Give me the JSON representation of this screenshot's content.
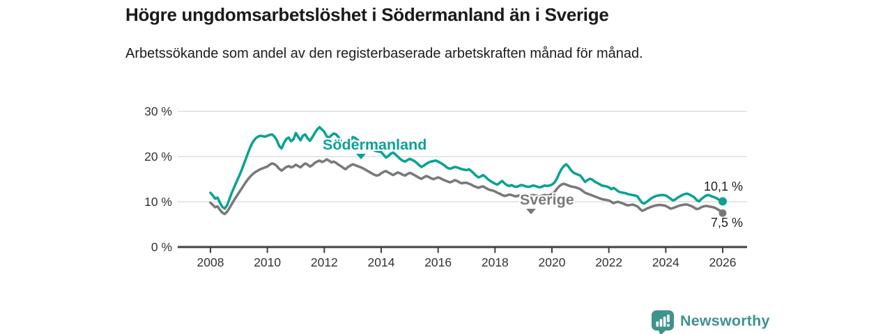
{
  "title": "Högre ungdomsarbetslöshet i Södermanland än i Sverige",
  "subtitle": "Arbetssökande som andel av den registerbaserade arbetskraften månad för månad.",
  "branding": {
    "logo_text": "Newsworthy",
    "logo_color": "#3e938d"
  },
  "axis_colors": {
    "grid": "#d8d8d8",
    "axis": "#3f3f3f",
    "tick_text": "#333333"
  },
  "chart_data": {
    "type": "line",
    "frequency": "monthly",
    "x_start": "2008-01",
    "x_end": "2026-01",
    "x_ticks": [
      2008,
      2010,
      2012,
      2014,
      2016,
      2018,
      2020,
      2022,
      2024,
      2026
    ],
    "ylim": [
      0,
      30
    ],
    "y_gridlines": [
      10,
      20,
      30
    ],
    "y_ticks": [
      [
        0,
        "0 %"
      ],
      [
        10,
        "10 %"
      ],
      [
        20,
        "20 %"
      ],
      [
        30,
        "30 %"
      ]
    ],
    "grid": true,
    "legend_position": "inline-labels",
    "series": [
      {
        "name": "Södermanland",
        "color": "#0ba294",
        "end_label": "10,1 %",
        "end_value": 10.1,
        "values": [
          12.0,
          11.4,
          10.7,
          10.9,
          9.8,
          8.9,
          8.5,
          9.2,
          10.6,
          12.0,
          13.2,
          14.4,
          15.6,
          16.8,
          18.2,
          19.6,
          21.0,
          22.3,
          23.3,
          24.0,
          24.4,
          24.6,
          24.5,
          24.4,
          24.6,
          24.8,
          24.9,
          24.4,
          23.6,
          22.3,
          21.8,
          23.0,
          23.9,
          24.2,
          23.4,
          23.8,
          25.2,
          24.4,
          23.6,
          24.6,
          24.9,
          24.0,
          23.5,
          24.3,
          25.2,
          26.0,
          26.5,
          26.0,
          25.5,
          24.5,
          24.2,
          24.7,
          25.1,
          24.9,
          24.3,
          23.5,
          22.6,
          21.8,
          22.9,
          23.4,
          24.3,
          24.1,
          23.7,
          23.3,
          22.9,
          22.5,
          22.1,
          21.9,
          21.7,
          21.4,
          21.2,
          21.1,
          21.0,
          20.4,
          19.8,
          20.1,
          20.6,
          20.9,
          20.5,
          20.0,
          19.5,
          19.1,
          18.9,
          19.2,
          19.5,
          19.3,
          19.0,
          18.6,
          18.1,
          17.7,
          18.0,
          18.4,
          18.7,
          18.9,
          19.0,
          19.1,
          18.9,
          18.6,
          18.3,
          17.9,
          17.5,
          17.3,
          17.5,
          17.7,
          17.6,
          17.4,
          17.2,
          17.1,
          17.0,
          17.2,
          16.8,
          16.3,
          15.8,
          15.4,
          15.6,
          15.9,
          15.5,
          15.0,
          14.6,
          14.3,
          14.0,
          13.8,
          14.2,
          14.6,
          14.1,
          13.7,
          13.5,
          13.7,
          13.4,
          13.3,
          13.5,
          13.7,
          13.6,
          13.4,
          13.3,
          13.4,
          13.6,
          13.5,
          13.3,
          13.2,
          13.4,
          13.6,
          13.5,
          13.6,
          13.8,
          14.2,
          15.0,
          16.2,
          17.2,
          17.9,
          18.3,
          17.8,
          17.0,
          16.5,
          16.2,
          16.0,
          15.8,
          15.1,
          14.4,
          14.8,
          15.1,
          14.9,
          14.5,
          14.2,
          13.9,
          13.6,
          13.5,
          13.4,
          13.2,
          12.8,
          13.1,
          12.7,
          12.3,
          12.1,
          12.0,
          11.9,
          11.7,
          11.6,
          11.5,
          11.4,
          11.2,
          10.5,
          9.8,
          9.6,
          10.0,
          10.4,
          10.8,
          11.1,
          11.3,
          11.4,
          11.5,
          11.5,
          11.4,
          11.1,
          10.7,
          10.3,
          10.5,
          10.9,
          11.2,
          11.5,
          11.7,
          11.8,
          11.6,
          11.3,
          11.0,
          10.4,
          10.1,
          10.6,
          11.0,
          11.4,
          11.5,
          11.3,
          11.1,
          10.9,
          10.6,
          10.3,
          10.1
        ]
      },
      {
        "name": "Sverige",
        "color": "#7b787c",
        "end_label": "7,5 %",
        "end_value": 7.5,
        "values": [
          9.8,
          9.3,
          8.8,
          9.0,
          8.2,
          7.6,
          7.3,
          7.8,
          8.6,
          9.5,
          10.4,
          11.2,
          12.0,
          12.8,
          13.6,
          14.4,
          15.1,
          15.7,
          16.2,
          16.6,
          16.9,
          17.2,
          17.4,
          17.6,
          17.8,
          18.2,
          18.5,
          18.3,
          17.9,
          17.3,
          16.9,
          17.3,
          17.7,
          17.9,
          17.6,
          17.8,
          18.2,
          17.9,
          17.6,
          18.1,
          18.5,
          18.2,
          17.8,
          18.1,
          18.6,
          18.9,
          19.1,
          18.8,
          19.0,
          19.4,
          19.1,
          18.7,
          18.9,
          18.6,
          18.2,
          17.9,
          17.5,
          17.2,
          17.7,
          18.0,
          18.3,
          18.1,
          17.9,
          17.7,
          17.5,
          17.2,
          16.9,
          16.6,
          16.3,
          16.0,
          15.8,
          15.9,
          16.3,
          16.6,
          16.8,
          16.5,
          16.2,
          15.9,
          16.2,
          16.5,
          16.3,
          16.0,
          15.8,
          16.1,
          16.4,
          16.2,
          15.9,
          15.6,
          15.3,
          15.1,
          15.4,
          15.7,
          15.5,
          15.2,
          15.0,
          15.2,
          15.4,
          15.2,
          14.9,
          14.7,
          14.5,
          14.3,
          14.5,
          14.8,
          14.6,
          14.3,
          14.1,
          14.2,
          14.2,
          14.0,
          13.8,
          13.5,
          13.3,
          13.1,
          13.3,
          13.4,
          13.1,
          12.8,
          12.6,
          12.5,
          12.3,
          12.0,
          11.8,
          11.5,
          11.3,
          11.4,
          11.6,
          11.5,
          11.3,
          11.2,
          11.4,
          11.5,
          11.5,
          11.4,
          11.3,
          11.4,
          11.5,
          11.4,
          11.3,
          11.2,
          11.4,
          11.5,
          11.4,
          11.5,
          11.7,
          12.1,
          12.8,
          13.4,
          13.8,
          14.0,
          13.8,
          13.6,
          13.4,
          13.3,
          13.2,
          13.0,
          12.8,
          12.4,
          12.0,
          11.8,
          11.6,
          11.4,
          11.2,
          11.0,
          10.8,
          10.6,
          10.5,
          10.4,
          10.3,
          10.0,
          9.7,
          9.9,
          10.0,
          9.8,
          9.6,
          9.4,
          9.2,
          9.3,
          9.4,
          9.2,
          9.0,
          8.5,
          8.0,
          8.2,
          8.5,
          8.7,
          8.9,
          9.1,
          9.2,
          9.3,
          9.3,
          9.2,
          9.1,
          8.8,
          8.5,
          8.6,
          8.8,
          9.0,
          9.2,
          9.3,
          9.4,
          9.4,
          9.2,
          9.0,
          8.7,
          8.4,
          8.5,
          8.8,
          9.0,
          9.1,
          9.0,
          8.9,
          8.8,
          8.6,
          8.3,
          8.0,
          7.5
        ]
      }
    ]
  }
}
